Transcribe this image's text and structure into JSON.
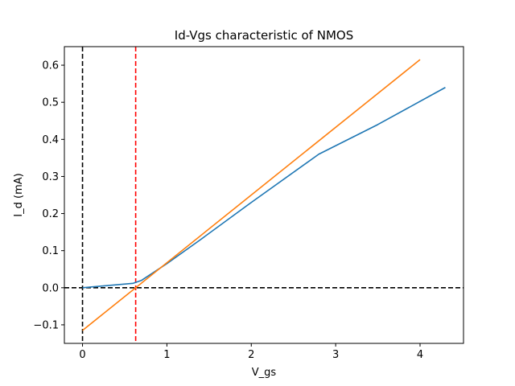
{
  "chart_data": {
    "type": "line",
    "title": "Id-Vgs characteristic of NMOS",
    "xlabel": "V_gs",
    "ylabel": "I_d (mA)",
    "xlim": [
      -0.215,
      4.515
    ],
    "ylim": [
      -0.15,
      0.65
    ],
    "xticks": [
      0,
      1,
      2,
      3,
      4
    ],
    "xtick_labels": [
      "0",
      "1",
      "2",
      "3",
      "4"
    ],
    "yticks": [
      -0.1,
      0.0,
      0.1,
      0.2,
      0.3,
      0.4,
      0.5,
      0.6
    ],
    "ytick_labels": [
      "−0.1",
      "0.0",
      "0.1",
      "0.2",
      "0.3",
      "0.4",
      "0.5",
      "0.6"
    ],
    "grid": false,
    "series": [
      {
        "color": "#1f77b4",
        "x": [
          0.0,
          0.6,
          0.7,
          1.0,
          1.4,
          2.0,
          2.8,
          3.5,
          4.3
        ],
        "y": [
          0.0,
          0.012,
          0.02,
          0.065,
          0.13,
          0.23,
          0.36,
          0.44,
          0.54
        ]
      },
      {
        "color": "#ff7f0e",
        "x": [
          0.0,
          4.0
        ],
        "y": [
          -0.115,
          0.615
        ]
      }
    ],
    "reference_lines": [
      {
        "orientation": "vertical",
        "value": 0.0,
        "color": "#000000",
        "style": "dashed"
      },
      {
        "orientation": "horizontal",
        "value": 0.0,
        "color": "#000000",
        "style": "dashed"
      },
      {
        "orientation": "vertical",
        "value": 0.63,
        "color": "#ff0000",
        "style": "dashed"
      }
    ]
  }
}
